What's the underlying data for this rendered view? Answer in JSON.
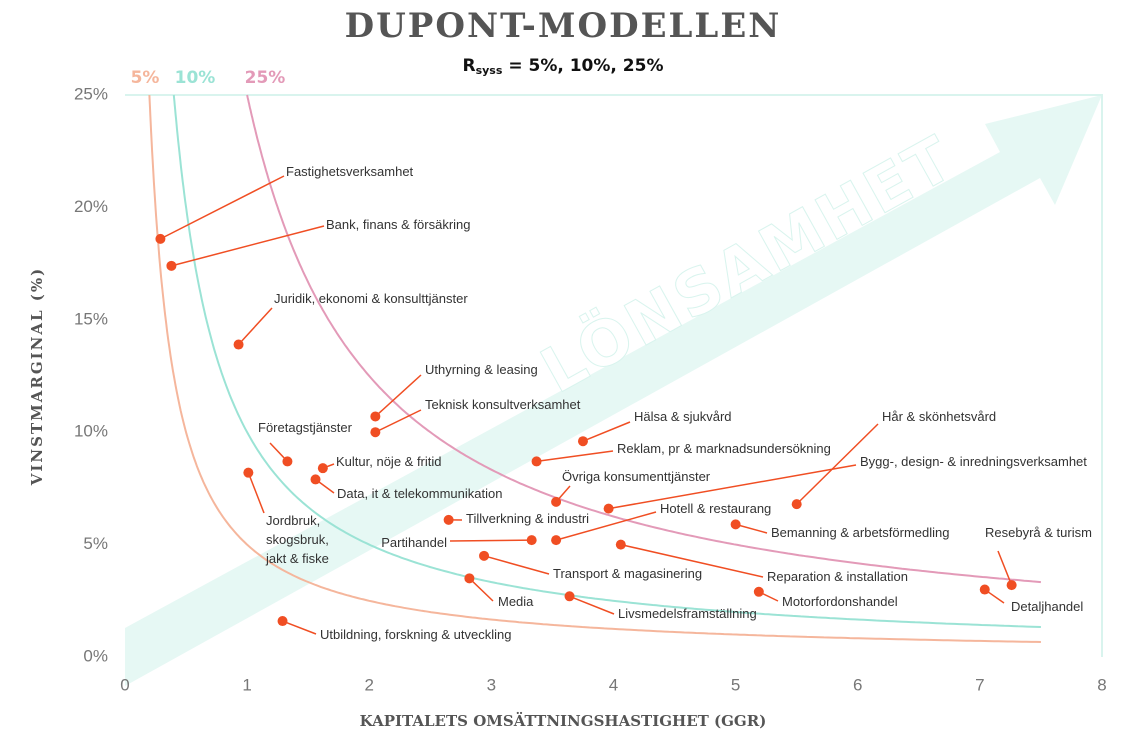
{
  "chart_data": {
    "type": "scatter",
    "title": "DUPONT-MODELLEN",
    "subtitle": {
      "main": "R",
      "sub": "syss",
      "rest": " = 5%, 10%, 25%"
    },
    "x_label": "KAPITALETS OMSÄTTNINGSHASTIGHET (GGR)",
    "y_label": "VINSTMARGINAL (%)",
    "watermark": "LÖNSAMHET",
    "xlim": [
      0,
      8
    ],
    "ylim": [
      0,
      25
    ],
    "xticks": [
      0,
      1,
      2,
      3,
      4,
      5,
      6,
      7,
      8
    ],
    "yticks": [
      {
        "value": 0,
        "label": "0%"
      },
      {
        "value": 5,
        "label": "5%"
      },
      {
        "value": 10,
        "label": "10%"
      },
      {
        "value": 15,
        "label": "15%"
      },
      {
        "value": 20,
        "label": "20%"
      },
      {
        "value": 25,
        "label": "25%"
      }
    ],
    "curves": [
      {
        "value": 5,
        "label": "5%",
        "color": "#f5b69c"
      },
      {
        "value": 10,
        "label": "10%",
        "color": "#9be3d5"
      },
      {
        "value": 25,
        "label": "25%",
        "color": "#e39ab8"
      }
    ],
    "color": "#f04e23",
    "labels": [
      "Fastighetsverksamhet",
      "Bank, finans & försäkring",
      "Juridik, ekonomi & konsulttjänster",
      "Uthyrning & leasing",
      "Teknisk konsultverksamhet",
      "Företagstjänster",
      "Kultur, nöje & fritid",
      "Data, it & telekommunikation",
      "Jordbruk,\nskogsbruk,\njakt & fiske",
      "Hälsa & sjukvård",
      "Reklam, pr & marknadsundersökning",
      "Övriga konsumenttjänster",
      "Hår & skönhetsvård",
      "Bygg-, design- & inredningsverksamhet",
      "Hotell & restaurang",
      "Tillverkning & industri",
      "Partihandel",
      "Bemanning & arbetsförmedling",
      "Reparation & installation",
      "Transport & magasinering",
      "Media",
      "Livsmedelsframställning",
      "Motorfordonshandel",
      "Resebyrå & turism",
      "Detaljhandel",
      "Utbildning, forskning & utveckling"
    ],
    "x": [
      0.29,
      0.38,
      0.93,
      2.05,
      2.05,
      1.33,
      1.62,
      1.56,
      1.01,
      3.75,
      3.37,
      3.53,
      5.5,
      3.96,
      3.53,
      2.65,
      3.33,
      5.0,
      4.06,
      2.94,
      2.82,
      3.64,
      5.19,
      7.26,
      7.04,
      1.29
    ],
    "values": [
      18.6,
      17.4,
      13.9,
      10.7,
      10.0,
      8.7,
      8.4,
      7.9,
      8.2,
      9.6,
      8.7,
      6.9,
      6.8,
      6.6,
      5.2,
      6.1,
      5.2,
      5.9,
      5.0,
      4.5,
      3.5,
      2.7,
      2.9,
      3.2,
      3.0,
      1.6
    ]
  }
}
